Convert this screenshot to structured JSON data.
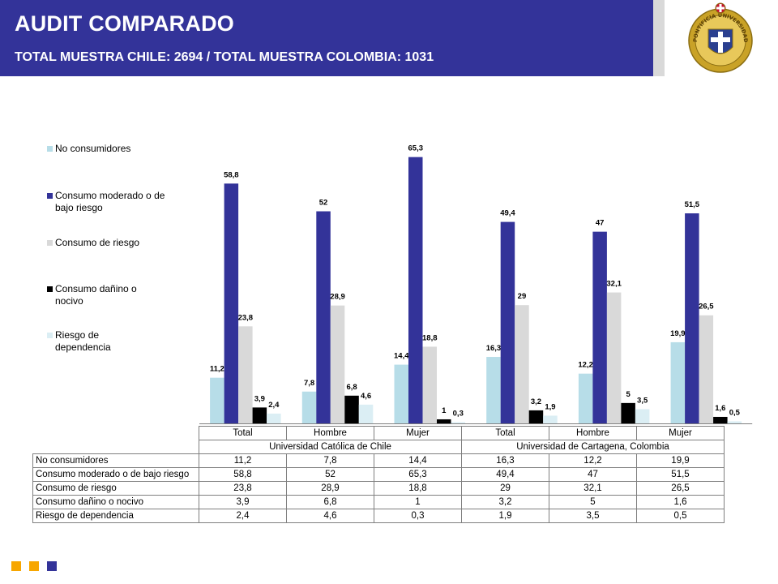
{
  "header": {
    "title": "AUDIT COMPARADO",
    "subtitle": "TOTAL MUESTRA CHILE: 2694 / TOTAL MUESTRA COLOMBIA: 1031"
  },
  "colors": {
    "header_bg": "#333399",
    "footer_orange": "#f7a600",
    "footer_blue": "#333399",
    "seal_gold": "#c9a227"
  },
  "seal": {
    "ring_text": "PONTIFICIA UNIVERSIDAD CATOLICA DE CHILE"
  },
  "chart_data": {
    "type": "bar",
    "groups": [
      {
        "name": "Universidad Católica de Chile",
        "categories": [
          "Total",
          "Hombre",
          "Mujer"
        ]
      },
      {
        "name": "Universidad de Cartagena, Colombia",
        "categories": [
          "Total",
          "Hombre",
          "Mujer"
        ]
      }
    ],
    "categories": [
      "Total",
      "Hombre",
      "Mujer",
      "Total",
      "Hombre",
      "Mujer"
    ],
    "series": [
      {
        "name": "No consumidores",
        "color": "#b7dde8",
        "values": [
          11.2,
          7.8,
          14.4,
          16.3,
          12.2,
          19.9
        ],
        "labels": [
          "11,2",
          "7,8",
          "14,4",
          "16,3",
          "12,2",
          "19,9"
        ]
      },
      {
        "name": "Consumo moderado o de bajo riesgo",
        "color": "#333399",
        "values": [
          58.8,
          52,
          65.3,
          49.4,
          47,
          51.5
        ],
        "labels": [
          "58,8",
          "52",
          "65,3",
          "49,4",
          "47",
          "51,5"
        ]
      },
      {
        "name": "Consumo de riesgo",
        "color": "#d9d9d9",
        "values": [
          23.8,
          28.9,
          18.8,
          29,
          32.1,
          26.5
        ],
        "labels": [
          "23,8",
          "28,9",
          "18,8",
          "29",
          "32,1",
          "26,5"
        ]
      },
      {
        "name": "Consumo dañino o nocivo",
        "color": "#000000",
        "values": [
          3.9,
          6.8,
          1,
          3.2,
          5,
          1.6
        ],
        "labels": [
          "3,9",
          "6,8",
          "1",
          "3,2",
          "5",
          "1,6"
        ]
      },
      {
        "name": "Riesgo de dependencia",
        "color": "#dbeef4",
        "values": [
          2.4,
          4.6,
          0.3,
          1.9,
          3.5,
          0.5
        ],
        "labels": [
          "2,4",
          "4,6",
          "0,3",
          "1,9",
          "3,5",
          "0,5"
        ]
      }
    ],
    "legend": {
      "placement": "left",
      "labels": [
        "No consumidores",
        "Consumo moderado o de bajo riesgo",
        "Consumo de riesgo",
        "Consumo dañino o nocivo",
        "Riesgo de dependencia"
      ]
    },
    "ylim": [
      0,
      70
    ],
    "grid": false,
    "data_table": {
      "rows": [
        {
          "label": "No consumidores",
          "values": [
            "11,2",
            "7,8",
            "14,4",
            "16,3",
            "12,2",
            "19,9"
          ]
        },
        {
          "label": "Consumo moderado o de bajo riesgo",
          "values": [
            "58,8",
            "52",
            "65,3",
            "49,4",
            "47",
            "51,5"
          ]
        },
        {
          "label": "Consumo de riesgo",
          "values": [
            "23,8",
            "28,9",
            "18,8",
            "29",
            "32,1",
            "26,5"
          ]
        },
        {
          "label": "Consumo dañino o nocivo",
          "values": [
            "3,9",
            "6,8",
            "1",
            "3,2",
            "5",
            "1,6"
          ]
        },
        {
          "label": "Riesgo de dependencia",
          "values": [
            "2,4",
            "4,6",
            "0,3",
            "1,9",
            "3,5",
            "0,5"
          ]
        }
      ]
    }
  }
}
